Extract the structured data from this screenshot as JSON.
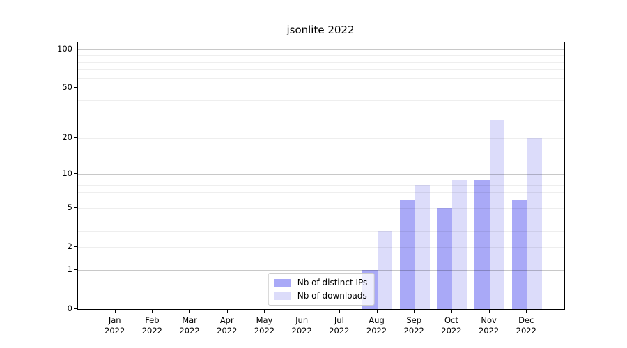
{
  "figure": {
    "background_color": "#ffffff",
    "text_color": "#000000"
  },
  "chart_data": {
    "type": "bar",
    "title": "jsonlite 2022",
    "categories": [
      "Jan 2022",
      "Feb 2022",
      "Mar 2022",
      "Apr 2022",
      "May 2022",
      "Jun 2022",
      "Jul 2022",
      "Aug 2022",
      "Sep 2022",
      "Oct 2022",
      "Nov 2022",
      "Dec 2022"
    ],
    "series": [
      {
        "name": "Nb of distinct IPs",
        "color": "#a9a9f7",
        "values": [
          0,
          0,
          0,
          0,
          0,
          0,
          0,
          1,
          6,
          5,
          9,
          6
        ]
      },
      {
        "name": "Nb of downloads",
        "color": "#dcdcfa",
        "values": [
          0,
          0,
          0,
          0,
          0,
          0,
          0,
          3,
          8,
          9,
          28,
          20
        ]
      }
    ],
    "xlabel": "",
    "ylabel": "",
    "y_axis": {
      "scale": "log1p",
      "tick_values": [
        0,
        1,
        2,
        5,
        10,
        20,
        50,
        100
      ],
      "major_gridlines": [
        1,
        10,
        100
      ],
      "minor_gridlines": [
        2,
        3,
        4,
        5,
        6,
        7,
        8,
        9,
        20,
        30,
        40,
        50,
        60,
        70,
        80,
        90
      ],
      "ylim": [
        0,
        113
      ]
    },
    "grid": true,
    "legend": {
      "position": "lower center",
      "border_color": "#cccccc",
      "background": "rgba(255,255,255,0.8)"
    }
  }
}
